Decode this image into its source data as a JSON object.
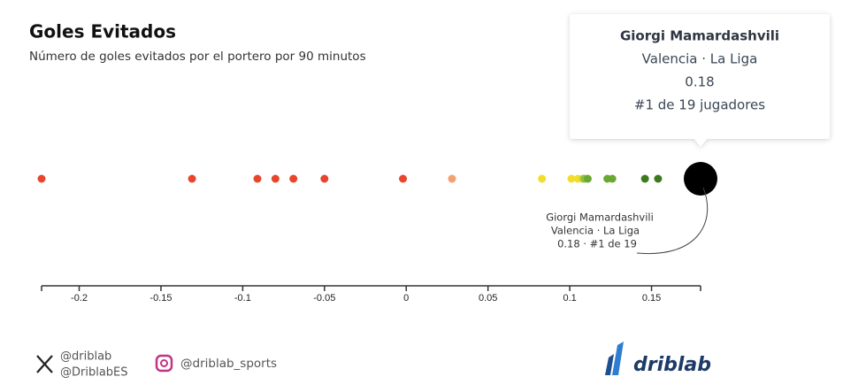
{
  "chart_data": {
    "type": "strip",
    "title": "Goles Evitados",
    "subtitle": "Número de goles evitados por el portero por 90 minutos",
    "values": [
      -0.223,
      -0.131,
      -0.091,
      -0.08,
      -0.069,
      -0.05,
      -0.002,
      0.028,
      0.083,
      0.101,
      0.105,
      0.108,
      0.109,
      0.111,
      0.123,
      0.126,
      0.146,
      0.154,
      0.18
    ],
    "colors": [
      "#e8452c",
      "#e8452c",
      "#e8452c",
      "#e8452c",
      "#e8452c",
      "#e8452c",
      "#e8452c",
      "#f4a070",
      "#f2dd2a",
      "#f2dd2a",
      "#f2dd2a",
      "#c8d33a",
      "#8cbf3c",
      "#6aa832",
      "#6aa832",
      "#6aa832",
      "#3d7a1e",
      "#3d7a1e",
      "#000000"
    ],
    "xlim": [
      -0.223,
      0.18
    ],
    "xticks": [
      -0.2,
      -0.15,
      -0.1,
      -0.05,
      0,
      0.05,
      0.1,
      0.15
    ],
    "tooltip": {
      "name": "Giorgi Mamardashvili",
      "team": "Valencia · La Liga",
      "rank": "#1 de 19 jugadores"
    },
    "annotation": [
      "Giorgi Mamardashvili",
      "Valencia · La Liga",
      "0.18 · #1 de 19"
    ]
  },
  "footer": {
    "handles": [
      "@driblab",
      "@DriblabES"
    ],
    "instagram": "@driblab_sports",
    "brand": "driblab"
  }
}
